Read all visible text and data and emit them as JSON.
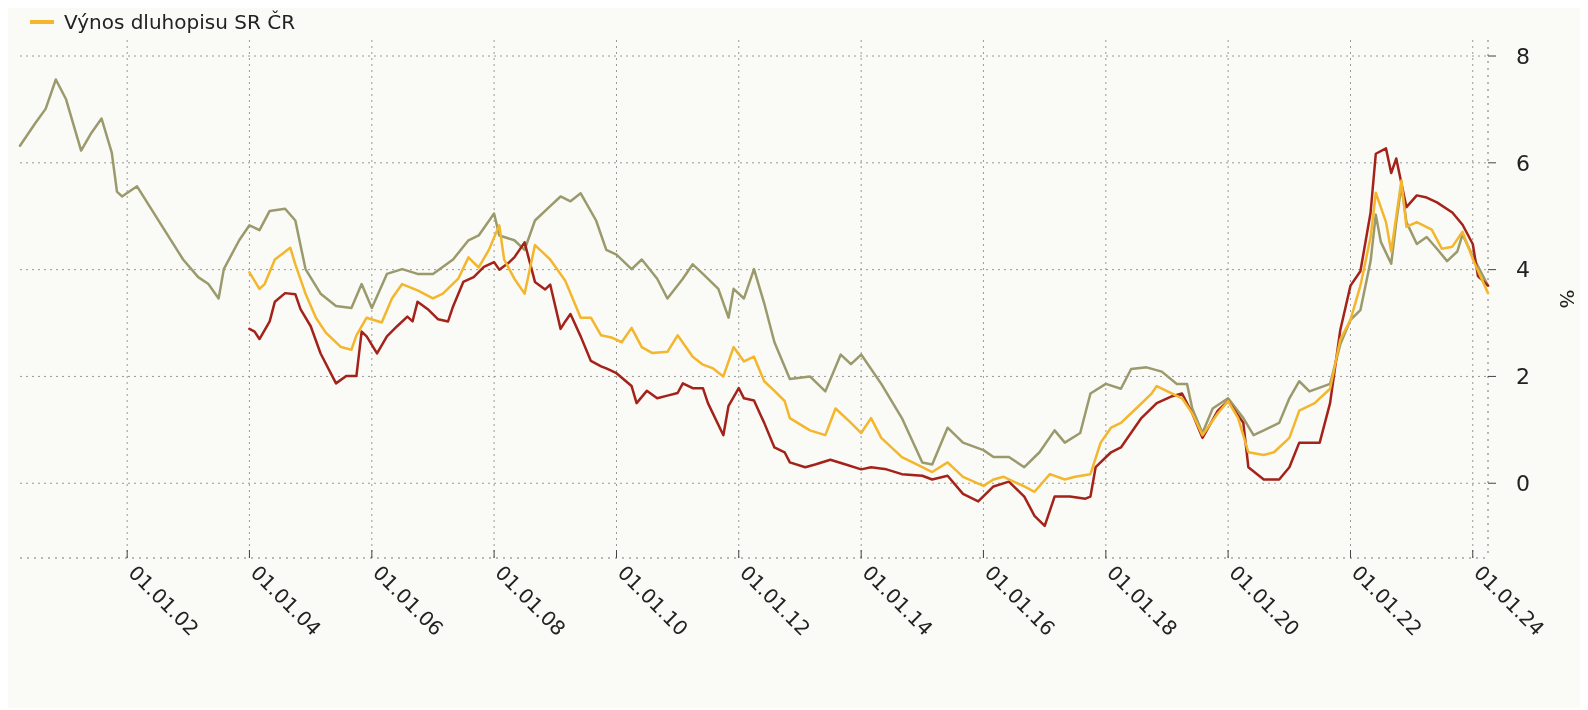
{
  "chart_data": {
    "type": "line",
    "ylabel": "%",
    "legend": "top left",
    "grid": true,
    "line_style": "solid",
    "marker": "none",
    "xlim": [
      "2000-04",
      "2024-04"
    ],
    "ylim": [
      -1.4,
      8.3
    ],
    "yticks": [
      0,
      2,
      4,
      6,
      8
    ],
    "xticks": [
      {
        "value": "2002-01-01",
        "label": "01.01.02"
      },
      {
        "value": "2004-01-01",
        "label": "01.01.04"
      },
      {
        "value": "2006-01-01",
        "label": "01.01.06"
      },
      {
        "value": "2008-01-01",
        "label": "01.01.08"
      },
      {
        "value": "2010-01-01",
        "label": "01.01.10"
      },
      {
        "value": "2012-01-01",
        "label": "01.01.12"
      },
      {
        "value": "2014-01-01",
        "label": "01.01.14"
      },
      {
        "value": "2016-01-01",
        "label": "01.01.16"
      },
      {
        "value": "2018-01-01",
        "label": "01.01.18"
      },
      {
        "value": "2020-01-01",
        "label": "01.01.20"
      },
      {
        "value": "2022-01-01",
        "label": "01.01.22"
      },
      {
        "value": "2024-01-01",
        "label": "01.01.24"
      }
    ],
    "series": [
      {
        "color": "#9b9a6c",
        "x": [
          "2000-04",
          "2000-07",
          "2000-09",
          "2000-11",
          "2001-01",
          "2001-04",
          "2001-06",
          "2001-08",
          "2001-10",
          "2001-11",
          "2001-12",
          "2002-03",
          "2002-06",
          "2002-09",
          "2002-12",
          "2003-03",
          "2003-05",
          "2003-07",
          "2003-08",
          "2003-11",
          "2004-01",
          "2004-03",
          "2004-05",
          "2004-08",
          "2004-10",
          "2004-12",
          "2005-03",
          "2005-06",
          "2005-09",
          "2005-11",
          "2006-01",
          "2006-04",
          "2006-07",
          "2006-10",
          "2007-01",
          "2007-05",
          "2007-08",
          "2007-10",
          "2008-01",
          "2008-02",
          "2008-05",
          "2008-07",
          "2008-09",
          "2008-12",
          "2009-02",
          "2009-04",
          "2009-06",
          "2009-09",
          "2009-11",
          "2010-01",
          "2010-04",
          "2010-06",
          "2010-09",
          "2010-11",
          "2011-02",
          "2011-04",
          "2011-06",
          "2011-09",
          "2011-11",
          "2011-12",
          "2012-02",
          "2012-04",
          "2012-06",
          "2012-08",
          "2012-11",
          "2013-03",
          "2013-06",
          "2013-09",
          "2013-11",
          "2014-01",
          "2014-05",
          "2014-09",
          "2015-01",
          "2015-03",
          "2015-06",
          "2015-09",
          "2016-01",
          "2016-03",
          "2016-06",
          "2016-09",
          "2016-12",
          "2017-03",
          "2017-05",
          "2017-08",
          "2017-10",
          "2018-01",
          "2018-04",
          "2018-06",
          "2018-09",
          "2018-12",
          "2019-03",
          "2019-05",
          "2019-06",
          "2019-08",
          "2019-10",
          "2020-01",
          "2020-04",
          "2020-06",
          "2020-08",
          "2020-11",
          "2021-01",
          "2021-03",
          "2021-05",
          "2021-09",
          "2021-11",
          "2022-01",
          "2022-03",
          "2022-05",
          "2022-06",
          "2022-07",
          "2022-09",
          "2022-10",
          "2022-11",
          "2022-12",
          "2023-02",
          "2023-04",
          "2023-06",
          "2023-08",
          "2023-10",
          "2023-11",
          "2024-01",
          "2024-04"
        ],
        "values": [
          6.32,
          6.74,
          7.01,
          7.56,
          7.19,
          6.23,
          6.56,
          6.83,
          6.19,
          5.46,
          5.37,
          5.56,
          5.1,
          4.64,
          4.19,
          3.86,
          3.73,
          3.46,
          4.01,
          4.55,
          4.83,
          4.74,
          5.1,
          5.14,
          4.92,
          4.01,
          3.55,
          3.32,
          3.28,
          3.73,
          3.28,
          3.92,
          4.01,
          3.92,
          3.92,
          4.19,
          4.55,
          4.64,
          5.05,
          4.64,
          4.55,
          4.37,
          4.92,
          5.19,
          5.37,
          5.28,
          5.43,
          4.92,
          4.37,
          4.28,
          4.01,
          4.19,
          3.83,
          3.46,
          3.83,
          4.1,
          3.92,
          3.64,
          3.1,
          3.64,
          3.46,
          4.01,
          3.37,
          2.64,
          1.95,
          2.0,
          1.72,
          2.41,
          2.23,
          2.41,
          1.86,
          1.22,
          0.39,
          0.35,
          1.04,
          0.76,
          0.62,
          0.49,
          0.49,
          0.3,
          0.58,
          0.99,
          0.76,
          0.94,
          1.68,
          1.86,
          1.77,
          2.14,
          2.17,
          2.09,
          1.86,
          1.86,
          1.4,
          0.94,
          1.4,
          1.59,
          1.22,
          0.9,
          0.99,
          1.13,
          1.59,
          1.91,
          1.72,
          1.86,
          2.6,
          3.06,
          3.24,
          4.16,
          5.03,
          4.52,
          4.11,
          4.89,
          5.58,
          4.89,
          4.48,
          4.61,
          4.39,
          4.16,
          4.34,
          4.66,
          4.25,
          3.7
        ]
      },
      {
        "color": "#a3221a",
        "x": [
          "2004-01",
          "2004-02",
          "2004-03",
          "2004-05",
          "2004-06",
          "2004-08",
          "2004-10",
          "2004-11",
          "2005-01",
          "2005-03",
          "2005-06",
          "2005-08",
          "2005-10",
          "2005-11",
          "2005-12",
          "2006-02",
          "2006-04",
          "2006-06",
          "2006-08",
          "2006-09",
          "2006-10",
          "2006-12",
          "2007-02",
          "2007-04",
          "2007-05",
          "2007-07",
          "2007-09",
          "2007-11",
          "2008-01",
          "2008-02",
          "2008-04",
          "2008-05",
          "2008-07",
          "2008-08",
          "2008-09",
          "2008-11",
          "2008-12",
          "2009-02",
          "2009-03",
          "2009-04",
          "2009-06",
          "2009-08",
          "2009-10",
          "2009-11",
          "2010-01",
          "2010-04",
          "2010-05",
          "2010-07",
          "2010-09",
          "2010-11",
          "2011-01",
          "2011-02",
          "2011-04",
          "2011-06",
          "2011-07",
          "2011-10",
          "2011-11",
          "2012-01",
          "2012-02",
          "2012-04",
          "2012-06",
          "2012-08",
          "2012-10",
          "2012-11",
          "2013-02",
          "2013-04",
          "2013-07",
          "2013-10",
          "2014-01",
          "2014-03",
          "2014-06",
          "2014-09",
          "2015-01",
          "2015-03",
          "2015-06",
          "2015-09",
          "2015-12",
          "2016-03",
          "2016-06",
          "2016-09",
          "2016-11",
          "2017-01",
          "2017-03",
          "2017-06",
          "2017-09",
          "2017-10",
          "2017-11",
          "2018-02",
          "2018-04",
          "2018-08",
          "2018-11",
          "2019-02",
          "2019-04",
          "2019-06",
          "2019-08",
          "2019-11",
          "2020-01",
          "2020-04",
          "2020-05",
          "2020-08",
          "2020-11",
          "2021-01",
          "2021-03",
          "2021-07",
          "2021-09",
          "2021-11",
          "2022-01",
          "2022-03",
          "2022-05",
          "2022-06",
          "2022-08",
          "2022-09",
          "2022-10",
          "2022-12",
          "2023-02",
          "2023-04",
          "2023-06",
          "2023-09",
          "2023-11",
          "2024-01",
          "2024-02",
          "2024-04"
        ],
        "values": [
          2.89,
          2.84,
          2.7,
          3.03,
          3.4,
          3.56,
          3.54,
          3.26,
          2.94,
          2.43,
          1.87,
          2.01,
          2.01,
          2.84,
          2.75,
          2.43,
          2.75,
          2.94,
          3.12,
          3.03,
          3.4,
          3.26,
          3.07,
          3.03,
          3.31,
          3.77,
          3.86,
          4.05,
          4.14,
          4.0,
          4.14,
          4.23,
          4.51,
          4.14,
          3.77,
          3.63,
          3.72,
          2.89,
          3.03,
          3.17,
          2.75,
          2.29,
          2.19,
          2.15,
          2.06,
          1.82,
          1.5,
          1.73,
          1.59,
          1.64,
          1.69,
          1.87,
          1.78,
          1.78,
          1.5,
          0.9,
          1.45,
          1.78,
          1.59,
          1.55,
          1.13,
          0.67,
          0.58,
          0.39,
          0.3,
          0.35,
          0.44,
          0.35,
          0.26,
          0.3,
          0.26,
          0.17,
          0.14,
          0.07,
          0.14,
          -0.2,
          -0.34,
          -0.06,
          0.03,
          -0.25,
          -0.61,
          -0.8,
          -0.25,
          -0.25,
          -0.29,
          -0.25,
          0.3,
          0.58,
          0.67,
          1.22,
          1.5,
          1.63,
          1.68,
          1.31,
          0.85,
          1.36,
          1.54,
          1.13,
          0.3,
          0.07,
          0.07,
          0.3,
          0.76,
          0.76,
          1.5,
          2.87,
          3.7,
          3.97,
          5.07,
          6.17,
          6.27,
          5.81,
          6.08,
          5.17,
          5.39,
          5.35,
          5.26,
          5.07,
          4.84,
          4.48,
          3.88,
          3.7
        ]
      },
      {
        "name": "Výnos dluhopisu SR ČR",
        "color": "#f3b62c",
        "x": [
          "2004-01",
          "2004-03",
          "2004-04",
          "2004-06",
          "2004-09",
          "2004-10",
          "2004-12",
          "2005-02",
          "2005-04",
          "2005-07",
          "2005-09",
          "2005-10",
          "2005-12",
          "2006-03",
          "2006-05",
          "2006-07",
          "2006-10",
          "2007-01",
          "2007-03",
          "2007-06",
          "2007-08",
          "2007-10",
          "2007-12",
          "2008-02",
          "2008-03",
          "2008-05",
          "2008-07",
          "2008-09",
          "2008-12",
          "2009-03",
          "2009-06",
          "2009-08",
          "2009-10",
          "2009-12",
          "2010-02",
          "2010-04",
          "2010-06",
          "2010-08",
          "2010-11",
          "2011-01",
          "2011-04",
          "2011-06",
          "2011-08",
          "2011-10",
          "2011-12",
          "2012-02",
          "2012-04",
          "2012-06",
          "2012-08",
          "2012-10",
          "2012-11",
          "2013-03",
          "2013-06",
          "2013-08",
          "2013-11",
          "2014-01",
          "2014-03",
          "2014-05",
          "2014-09",
          "2015-01",
          "2015-03",
          "2015-06",
          "2015-09",
          "2016-01",
          "2016-03",
          "2016-05",
          "2016-09",
          "2016-11",
          "2017-02",
          "2017-05",
          "2017-07",
          "2017-10",
          "2017-12",
          "2018-02",
          "2018-04",
          "2018-07",
          "2018-10",
          "2018-11",
          "2019-02",
          "2019-04",
          "2019-06",
          "2019-08",
          "2019-11",
          "2020-01",
          "2020-03",
          "2020-05",
          "2020-08",
          "2020-10",
          "2021-01",
          "2021-03",
          "2021-06",
          "2021-09",
          "2021-11",
          "2022-01",
          "2022-03",
          "2022-05",
          "2022-06",
          "2022-08",
          "2022-09",
          "2022-11",
          "2022-12",
          "2023-02",
          "2023-05",
          "2023-07",
          "2023-09",
          "2023-11",
          "2024-01",
          "2024-04"
        ],
        "values": [
          3.95,
          3.64,
          3.73,
          4.19,
          4.41,
          4.1,
          3.55,
          3.1,
          2.82,
          2.55,
          2.5,
          2.77,
          3.1,
          3.01,
          3.46,
          3.73,
          3.61,
          3.46,
          3.55,
          3.83,
          4.23,
          4.04,
          4.37,
          4.83,
          4.19,
          3.83,
          3.55,
          4.46,
          4.19,
          3.79,
          3.1,
          3.1,
          2.77,
          2.73,
          2.64,
          2.91,
          2.55,
          2.44,
          2.46,
          2.77,
          2.37,
          2.22,
          2.15,
          2.0,
          2.55,
          2.28,
          2.37,
          1.91,
          1.73,
          1.54,
          1.22,
          0.99,
          0.9,
          1.4,
          1.13,
          0.94,
          1.22,
          0.85,
          0.49,
          0.3,
          0.21,
          0.39,
          0.12,
          -0.05,
          0.07,
          0.12,
          -0.06,
          -0.16,
          0.17,
          0.07,
          0.12,
          0.17,
          0.76,
          1.04,
          1.13,
          1.4,
          1.68,
          1.82,
          1.68,
          1.59,
          1.31,
          0.9,
          1.31,
          1.54,
          1.22,
          0.58,
          0.53,
          0.58,
          0.85,
          1.36,
          1.5,
          1.77,
          2.69,
          3.06,
          3.7,
          4.61,
          5.44,
          4.89,
          4.34,
          5.67,
          4.8,
          4.89,
          4.75,
          4.39,
          4.43,
          4.71,
          4.2,
          3.56
        ]
      }
    ]
  }
}
